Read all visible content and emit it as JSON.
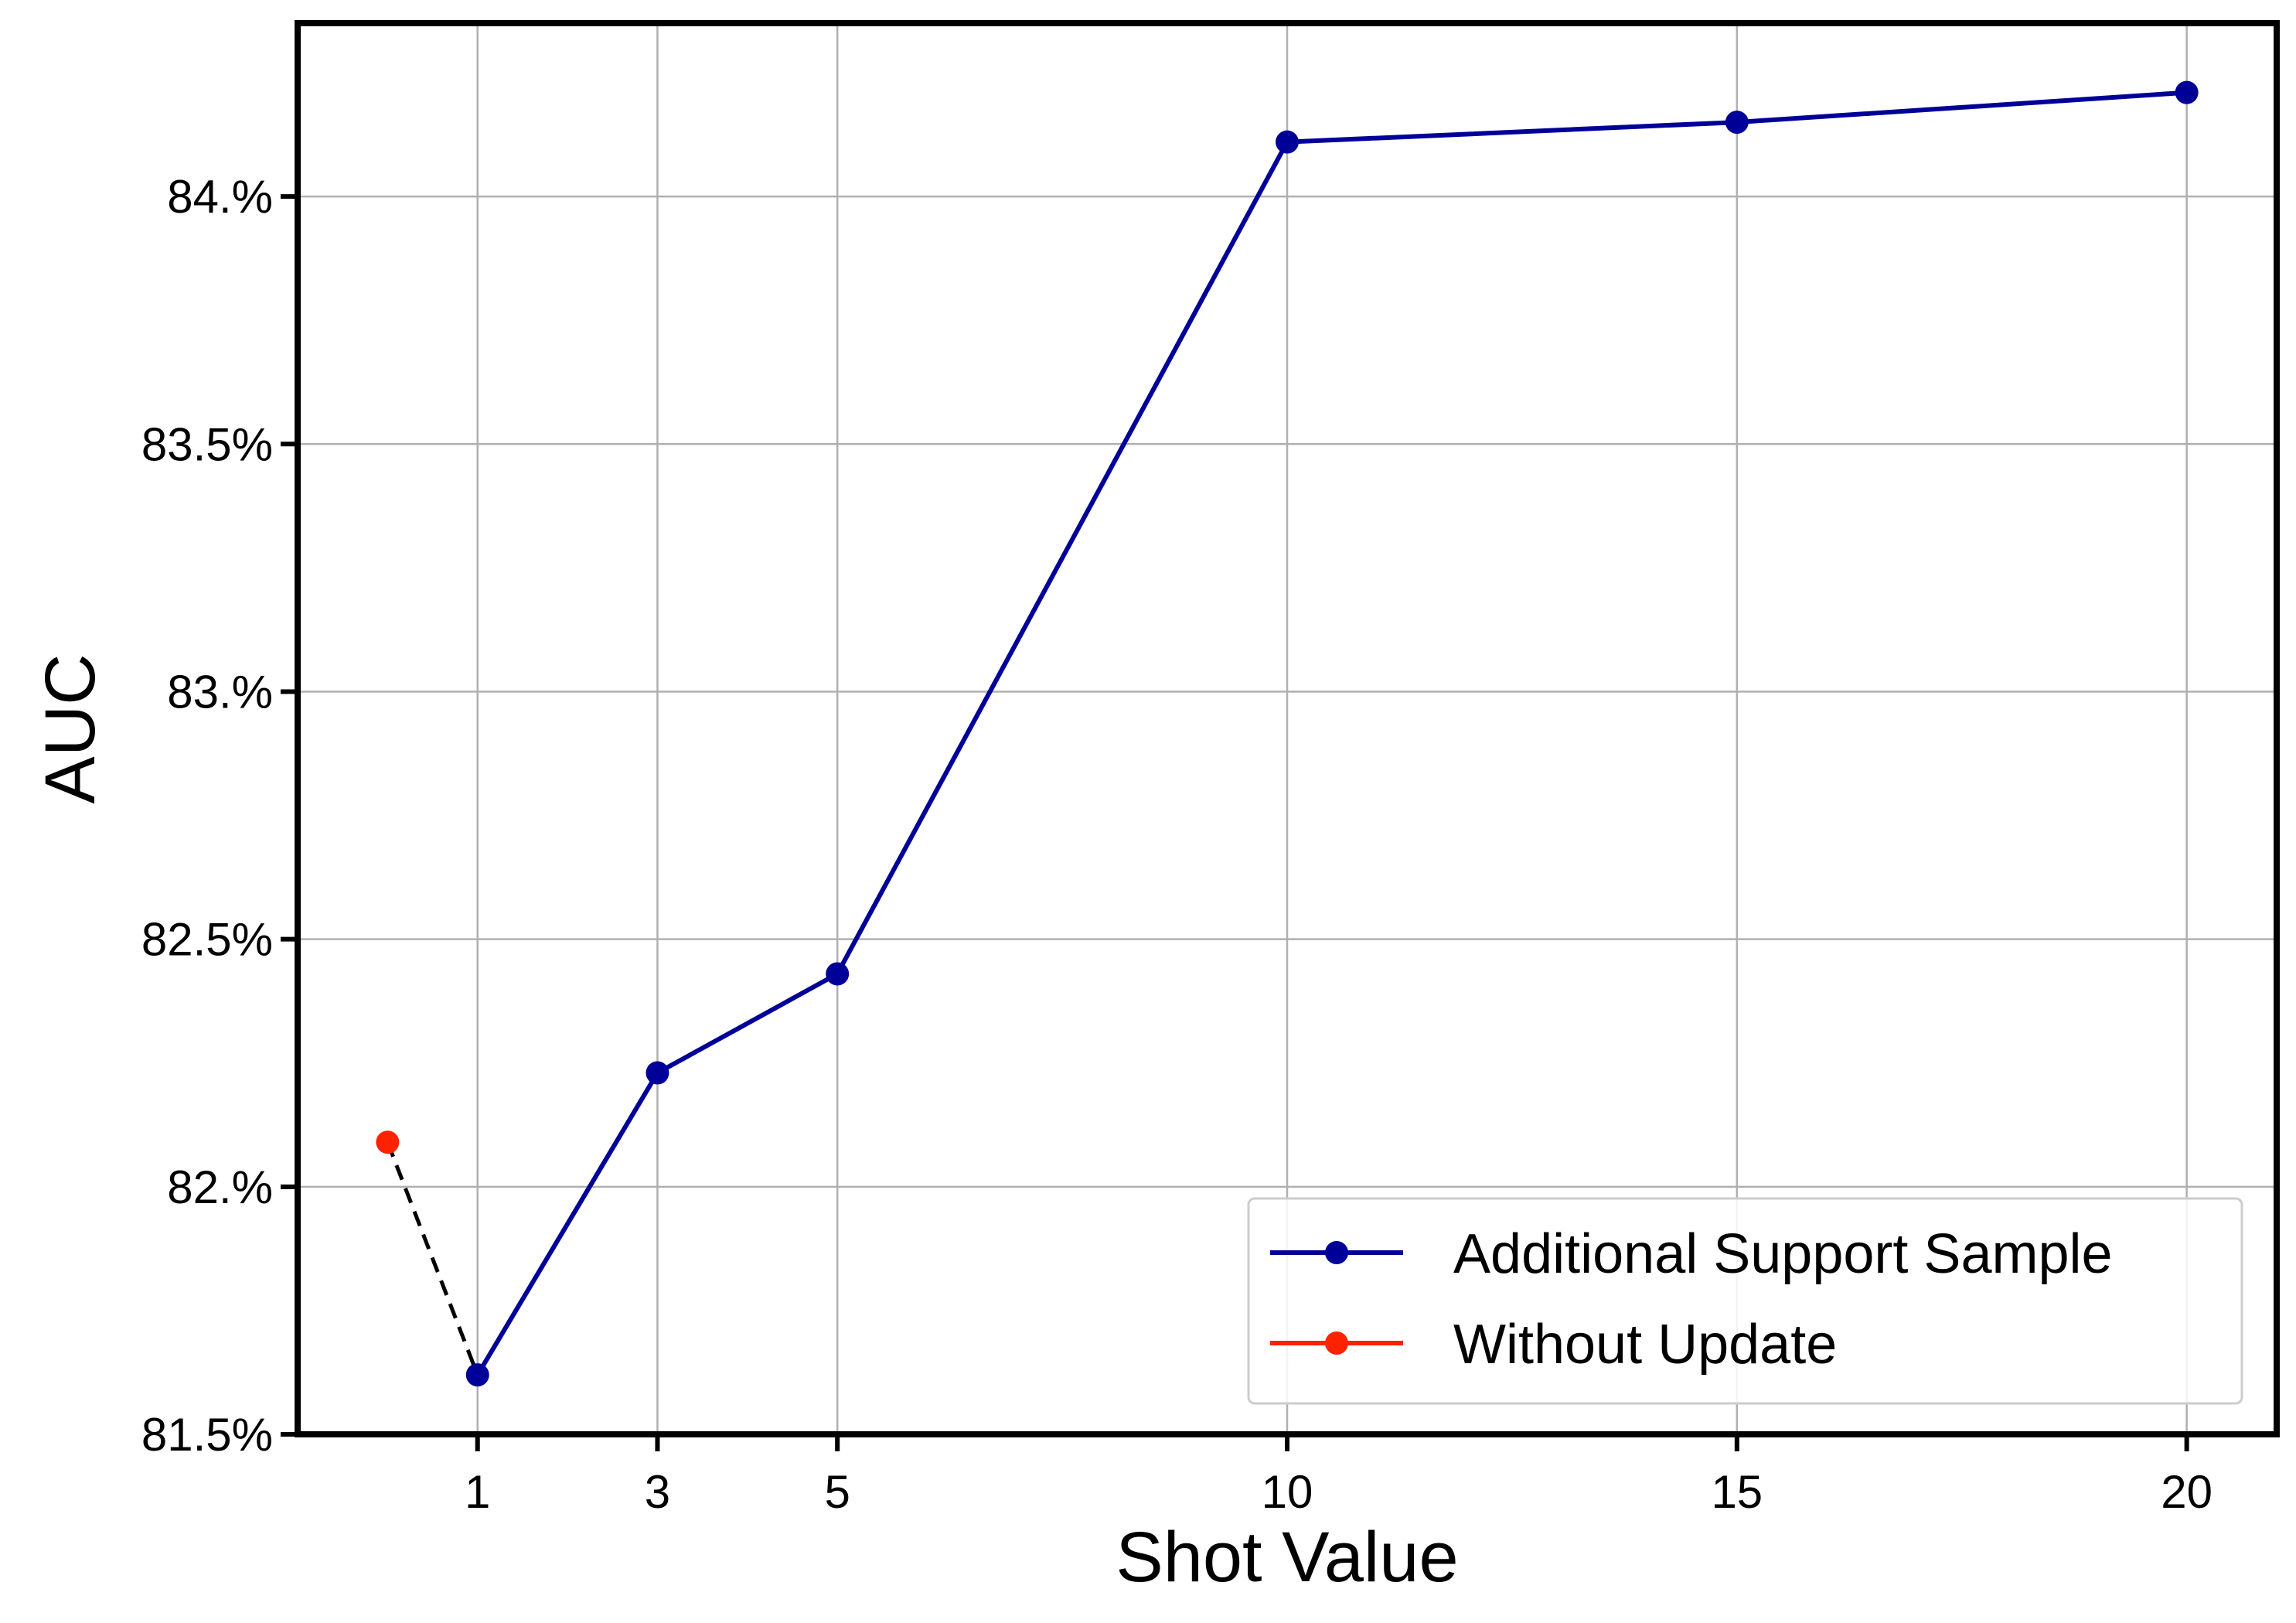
{
  "chart_data": {
    "type": "line",
    "xlabel": "Shot Value",
    "ylabel": "AUC",
    "x_ticks": [
      1,
      3,
      5,
      10,
      15,
      20
    ],
    "x_tick_labels": [
      "1",
      "3",
      "5",
      "10",
      "15",
      "20"
    ],
    "y_ticks": [
      81.5,
      82.0,
      82.5,
      83.0,
      83.5,
      84.0
    ],
    "y_tick_labels": [
      "81.5%",
      "82.%",
      "82.5%",
      "83.%",
      "83.5%",
      "84.%"
    ],
    "xlim": [
      -1,
      21
    ],
    "ylim": [
      81.5,
      84.35
    ],
    "grid": true,
    "legend_position": "lower-right",
    "series": [
      {
        "name": "Additional Support Sample",
        "color": "#000099",
        "marker": "circle",
        "line_style": "solid",
        "x": [
          1,
          3,
          5,
          10,
          15,
          20
        ],
        "y": [
          81.62,
          82.23,
          82.43,
          84.11,
          84.15,
          84.21
        ]
      },
      {
        "name": "Without Update",
        "color": "#ff2200",
        "marker": "circle",
        "line_style": "solid",
        "x": [
          0
        ],
        "y": [
          82.09
        ]
      }
    ],
    "connector": {
      "color": "#000000",
      "line_style": "dashed",
      "x": [
        0,
        1
      ],
      "y": [
        82.09,
        81.62
      ]
    }
  }
}
